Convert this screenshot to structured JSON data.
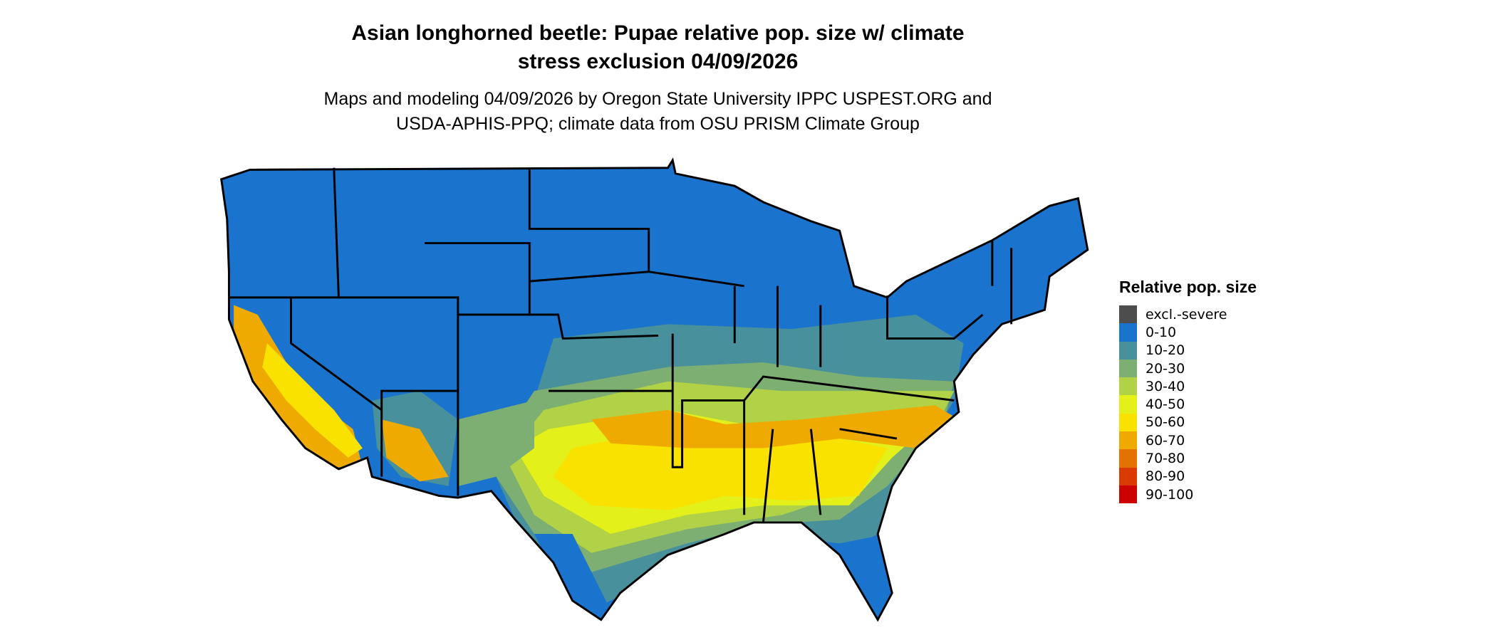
{
  "title": "Asian longhorned beetle: Pupae relative pop. size w/ climate stress exclusion 04/09/2026",
  "title_lines": [
    "Asian longhorned beetle: Pupae relative pop. size w/ climate",
    "stress exclusion 04/09/2026"
  ],
  "subtitle_lines": [
    "Maps and modeling 04/09/2026 by Oregon State University IPPC USPEST.ORG and",
    "USDA-APHIS-PPQ; climate data from OSU PRISM Climate Group"
  ],
  "map": {
    "region": "Contiguous United States",
    "state_borders": true,
    "legend": {
      "title": "Relative pop. size",
      "placement": "right",
      "items": [
        {
          "label": "excl.-severe",
          "color": "#4d4d4d"
        },
        {
          "label": "0-10",
          "color": "#1a73cd"
        },
        {
          "label": "10-20",
          "color": "#48909b"
        },
        {
          "label": "20-30",
          "color": "#7eaf72"
        },
        {
          "label": "30-40",
          "color": "#b1d147"
        },
        {
          "label": "40-50",
          "color": "#e3f019"
        },
        {
          "label": "50-60",
          "color": "#f9e100"
        },
        {
          "label": "60-70",
          "color": "#eeaa00"
        },
        {
          "label": "70-80",
          "color": "#e37200"
        },
        {
          "label": "80-90",
          "color": "#d93a00"
        },
        {
          "label": "90-100",
          "color": "#cc0000"
        }
      ]
    }
  }
}
